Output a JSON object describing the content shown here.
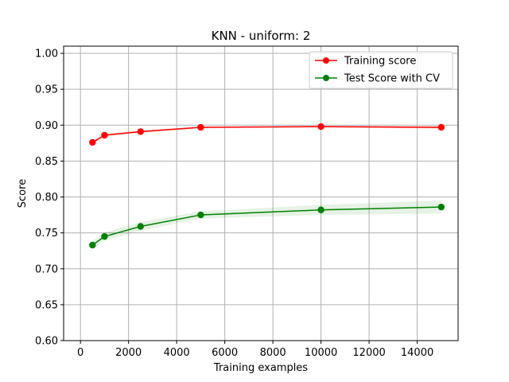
{
  "chart_data": {
    "type": "line",
    "title": "KNN - uniform: 2",
    "xlabel": "Training examples",
    "ylabel": "Score",
    "xlim": [
      -700,
      15700
    ],
    "ylim": [
      0.6,
      1.01
    ],
    "xticks": [
      0,
      2000,
      4000,
      6000,
      8000,
      10000,
      12000,
      14000
    ],
    "xtick_labels": [
      "0",
      "2000",
      "4000",
      "6000",
      "8000",
      "10000",
      "12000",
      "14000"
    ],
    "yticks": [
      0.6,
      0.65,
      0.7,
      0.75,
      0.8,
      0.85,
      0.9,
      0.95,
      1.0
    ],
    "ytick_labels": [
      "0.60",
      "0.65",
      "0.70",
      "0.75",
      "0.80",
      "0.85",
      "0.90",
      "0.95",
      "1.00"
    ],
    "grid": true,
    "legend_position": "top-right",
    "x": [
      500,
      1000,
      2500,
      5000,
      10000,
      15000
    ],
    "series": [
      {
        "name": "Training score",
        "color": "#ff0000",
        "band_color": "#ff0000",
        "values": [
          0.876,
          0.886,
          0.891,
          0.897,
          0.898,
          0.897
        ],
        "band_lower": [
          0.874,
          0.884,
          0.889,
          0.896,
          0.897,
          0.895
        ],
        "band_upper": [
          0.878,
          0.888,
          0.893,
          0.898,
          0.899,
          0.899
        ]
      },
      {
        "name": "Test Score with CV",
        "color": "#008000",
        "band_color": "#008000",
        "values": [
          0.733,
          0.745,
          0.759,
          0.775,
          0.782,
          0.786
        ],
        "band_lower": [
          0.727,
          0.739,
          0.753,
          0.77,
          0.775,
          0.777
        ],
        "band_upper": [
          0.739,
          0.751,
          0.765,
          0.78,
          0.789,
          0.795
        ]
      }
    ]
  }
}
